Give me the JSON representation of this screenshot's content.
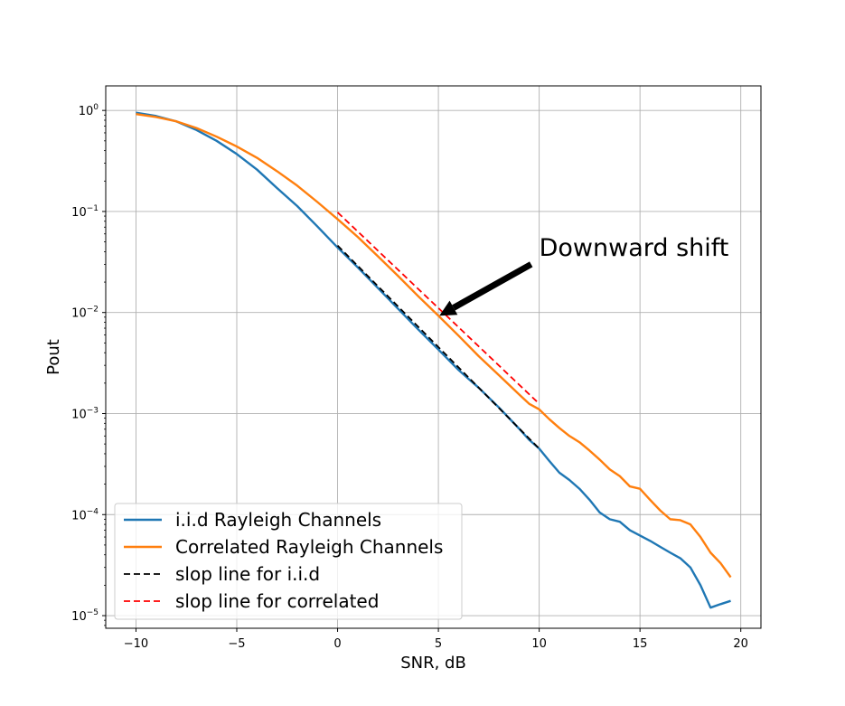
{
  "chart_data": {
    "type": "line",
    "title": "",
    "xlabel": "SNR, dB",
    "ylabel": "Pout",
    "xlim": [
      -11.5,
      21
    ],
    "ylim": [
      7.5e-06,
      1.75
    ],
    "yscale": "log",
    "grid": true,
    "legend_position": "lower-left",
    "x_ticks": [
      -10,
      -5,
      0,
      5,
      10,
      15,
      20
    ],
    "x_tick_labels": [
      "−10",
      "−5",
      "0",
      "5",
      "10",
      "15",
      "20"
    ],
    "y_ticks": [
      1,
      0.1,
      0.01,
      0.001,
      0.0001,
      1e-05
    ],
    "y_tick_labels": [
      {
        "base": "10",
        "exp": "0"
      },
      {
        "base": "10",
        "exp": "−1"
      },
      {
        "base": "10",
        "exp": "−2"
      },
      {
        "base": "10",
        "exp": "−3"
      },
      {
        "base": "10",
        "exp": "−4"
      },
      {
        "base": "10",
        "exp": "−5"
      }
    ],
    "series": [
      {
        "name": "i.i.d Rayleigh Channels",
        "color": "#1f77b4",
        "style": "solid",
        "x": [
          -10,
          -9,
          -8,
          -7,
          -6,
          -5,
          -4,
          -3,
          -2,
          -1,
          0,
          1,
          2,
          3,
          4,
          5,
          6,
          6.5,
          7,
          8,
          9,
          9.5,
          10,
          10.5,
          11,
          11.5,
          12,
          12.5,
          13,
          13.5,
          14,
          14.5,
          15,
          15.5,
          16,
          16.5,
          17,
          17.5,
          18,
          18.5,
          19,
          19.5
        ],
        "values": [
          0.95,
          0.88,
          0.78,
          0.64,
          0.5,
          0.37,
          0.26,
          0.17,
          0.113,
          0.071,
          0.044,
          0.028,
          0.0175,
          0.0109,
          0.0068,
          0.0043,
          0.0027,
          0.0022,
          0.0018,
          0.00115,
          0.00071,
          0.00055,
          0.00045,
          0.00034,
          0.00026,
          0.00022,
          0.00018,
          0.00014,
          0.000105,
          9e-05,
          8.5e-05,
          7e-05,
          6.2e-05,
          5.5e-05,
          4.8e-05,
          4.2e-05,
          3.7e-05,
          3e-05,
          2e-05,
          1.2e-05,
          1.3e-05,
          1.4e-05
        ]
      },
      {
        "name": "Correlated Rayleigh Channels",
        "color": "#ff7f0e",
        "style": "solid",
        "x": [
          -10,
          -9,
          -8,
          -7,
          -6,
          -5,
          -4,
          -3,
          -2,
          -1,
          0,
          1,
          2,
          3,
          4,
          5,
          6,
          7,
          8,
          9,
          9.5,
          10,
          10.5,
          11,
          11.5,
          12,
          12.5,
          13,
          13.5,
          14,
          14.5,
          15,
          15.5,
          16,
          16.5,
          17,
          17.5,
          18,
          18.5,
          19,
          19.5
        ],
        "values": [
          0.92,
          0.86,
          0.78,
          0.67,
          0.55,
          0.44,
          0.34,
          0.25,
          0.18,
          0.124,
          0.084,
          0.056,
          0.036,
          0.023,
          0.0145,
          0.0093,
          0.0059,
          0.0037,
          0.0024,
          0.00155,
          0.00125,
          0.0011,
          0.00088,
          0.00072,
          0.0006,
          0.00052,
          0.00043,
          0.00035,
          0.00028,
          0.00024,
          0.00019,
          0.00018,
          0.00014,
          0.00011,
          9e-05,
          8.8e-05,
          8e-05,
          6e-05,
          4.2e-05,
          3.3e-05,
          2.4e-05
        ]
      },
      {
        "name": "slop line for i.i.d",
        "color": "#000000",
        "style": "dashed",
        "x": [
          0,
          10
        ],
        "values": [
          0.046,
          0.00045
        ]
      },
      {
        "name": "slop line for correlated",
        "color": "#ff0000",
        "style": "dashed",
        "x": [
          0,
          10
        ],
        "values": [
          0.098,
          0.00125
        ]
      }
    ],
    "annotations": [
      {
        "text": "Downward shift",
        "text_x": 10,
        "text_y": 0.0365,
        "arrow_from_x": 9.6,
        "arrow_from_y": 0.03,
        "arrow_to_x": 5.05,
        "arrow_to_y": 0.0093
      }
    ]
  }
}
